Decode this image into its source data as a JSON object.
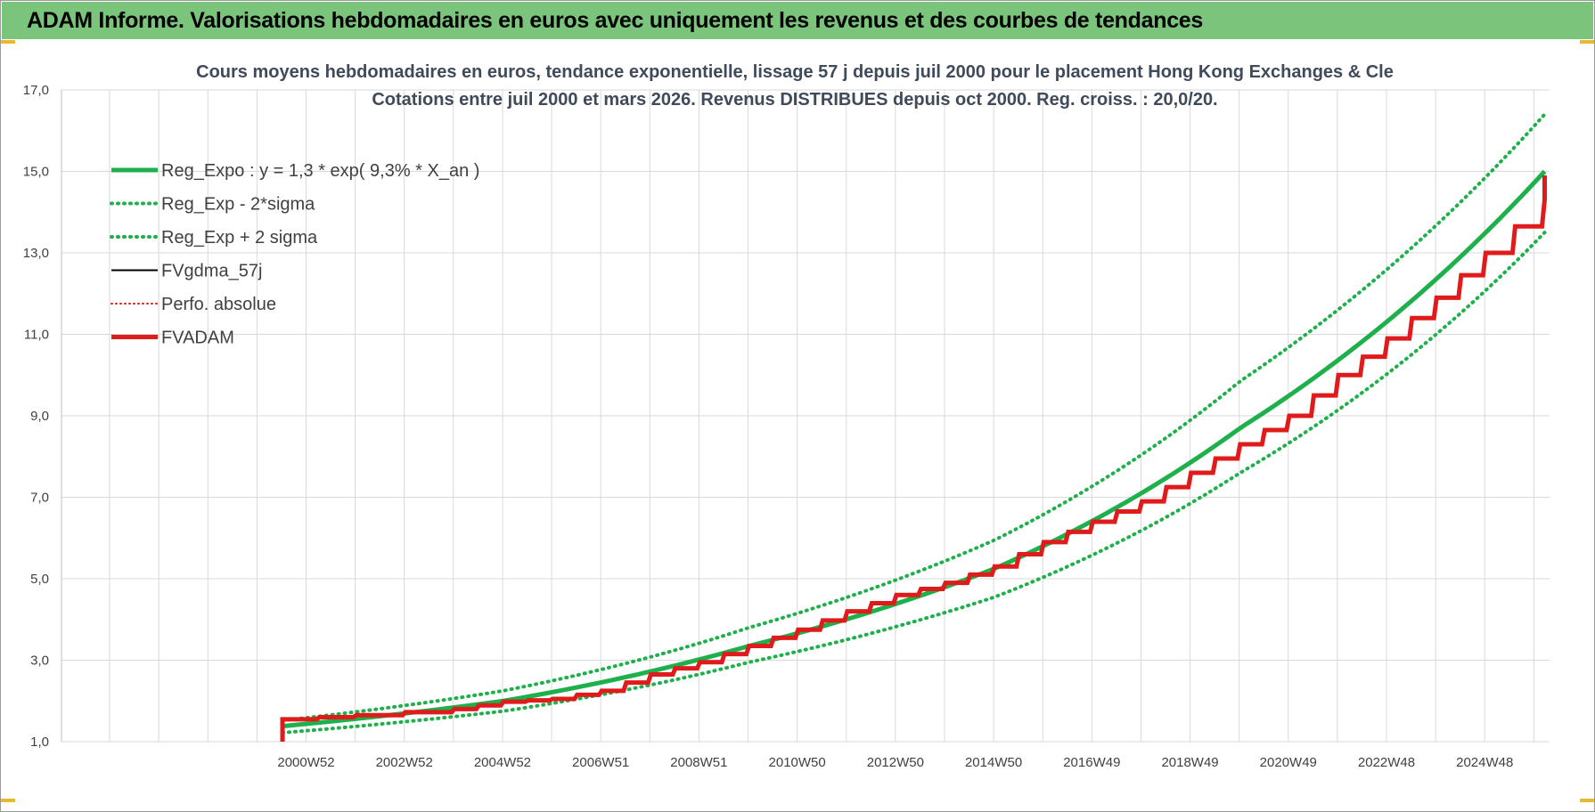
{
  "banner": {
    "title": "ADAM Informe. Valorisations hebdomadaires en euros avec uniquement les revenus et des courbes de tendances"
  },
  "colors": {
    "banner_bg": "#7ac47b",
    "reg_expo": "#1db04b",
    "fvgdma": "#000000",
    "fvadam": "#e01b1b",
    "perfo": "#e01b1b",
    "grid": "#d9d9d9"
  },
  "chart_data": {
    "type": "line",
    "title_line1": "Cours moyens hebdomadaires en euros, tendance exponentielle, lissage 57 j depuis juil 2000 pour le placement Hong Kong Exchanges & Cle",
    "title_line2": "Cotations entre juil 2000 et mars 2026. Revenus DISTRIBUES depuis oct 2000. Reg. croiss. : 20,0/20.",
    "xlabel": "",
    "ylabel": "",
    "ylim": [
      1.0,
      17.0
    ],
    "y_ticks": [
      "1,0",
      "3,0",
      "5,0",
      "7,0",
      "9,0",
      "11,0",
      "13,0",
      "15,0",
      "17,0"
    ],
    "x_ticks": [
      "2000W52",
      "2002W52",
      "2004W52",
      "2006W51",
      "2008W51",
      "2010W50",
      "2012W50",
      "2014W50",
      "2016W49",
      "2018W49",
      "2020W49",
      "2022W48",
      "2024W48"
    ],
    "x_tick_years": [
      2000.98,
      2002.98,
      2004.98,
      2006.98,
      2008.98,
      2010.98,
      2012.98,
      2014.98,
      2016.98,
      2018.98,
      2020.98,
      2022.98,
      2024.98
    ],
    "x_range": [
      1996.0,
      2026.3
    ],
    "data_range": [
      2000.5,
      2026.2
    ],
    "legend": [
      {
        "key": "reg_expo",
        "label": "Reg_Expo : y = 1,3 * exp( 9,3% *  X_an )",
        "style": "solid-thick",
        "color": "#1db04b"
      },
      {
        "key": "reg_minus",
        "label": "Reg_Exp - 2*sigma",
        "style": "dotted",
        "color": "#1db04b"
      },
      {
        "key": "reg_plus",
        "label": "Reg_Exp + 2 sigma",
        "style": "dotted",
        "color": "#1db04b"
      },
      {
        "key": "fvgdma",
        "label": "FVgdma_57j",
        "style": "solid-thin",
        "color": "#000000"
      },
      {
        "key": "perfo",
        "label": "Perfo. absolue",
        "style": "dotted-thin",
        "color": "#e01b1b"
      },
      {
        "key": "fvadam",
        "label": "FVADAM",
        "style": "solid-thick",
        "color": "#e01b1b"
      }
    ],
    "series": [
      {
        "key": "reg_expo",
        "x": [
          2000.5,
          2005,
          2010,
          2015,
          2020,
          2026.2
        ],
        "y": [
          1.38,
          2.0,
          3.35,
          5.25,
          8.7,
          15.0
        ]
      },
      {
        "key": "reg_minus",
        "x": [
          2000.5,
          2005,
          2010,
          2015,
          2020,
          2026.2
        ],
        "y": [
          1.22,
          1.75,
          2.95,
          4.55,
          7.6,
          13.5
        ]
      },
      {
        "key": "reg_plus",
        "x": [
          2000.5,
          2005,
          2010,
          2015,
          2020,
          2026.2
        ],
        "y": [
          1.52,
          2.25,
          3.8,
          5.95,
          9.85,
          16.4
        ]
      },
      {
        "key": "fvadam",
        "x": [
          2000.5,
          2000.5,
          2002,
          2004,
          2005,
          2006,
          2007,
          2008,
          2009,
          2010,
          2011,
          2012,
          2013,
          2014,
          2015,
          2016,
          2017,
          2018,
          2019,
          2020,
          2021,
          2022,
          2023,
          2024,
          2025,
          2026.2,
          2026.2
        ],
        "y": [
          1.0,
          1.55,
          1.65,
          1.8,
          1.98,
          2.05,
          2.25,
          2.65,
          2.95,
          3.35,
          3.75,
          4.2,
          4.6,
          4.9,
          5.3,
          5.9,
          6.4,
          6.9,
          7.6,
          8.3,
          9.0,
          10.0,
          10.9,
          11.9,
          13.0,
          14.3,
          14.9
        ]
      }
    ]
  }
}
